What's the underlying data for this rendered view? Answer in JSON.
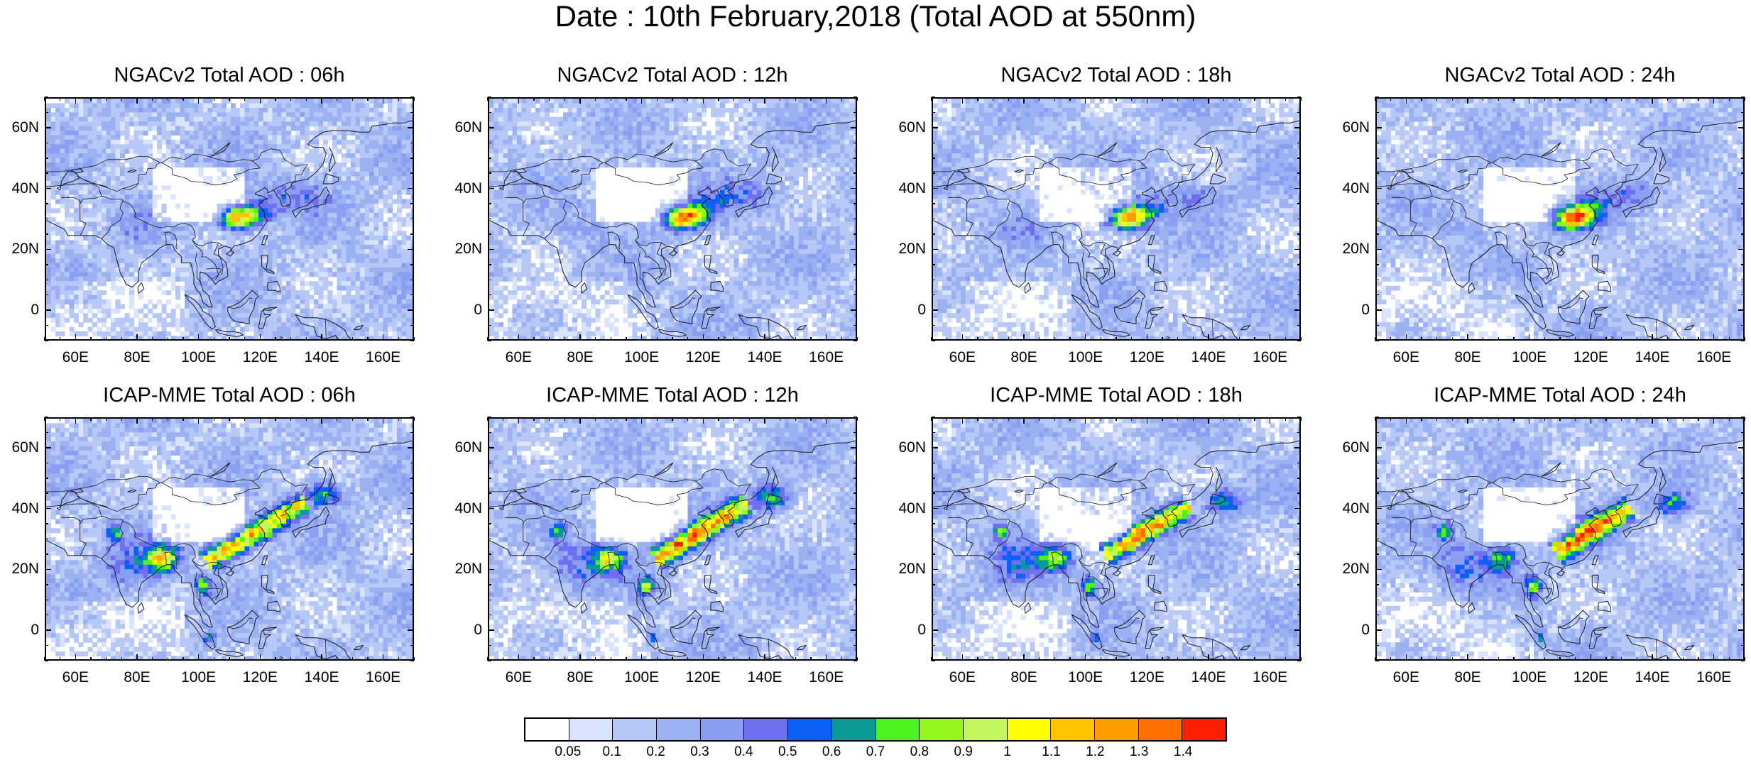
{
  "title": "Date : 10th February,2018 (Total AOD at 550nm)",
  "panels": [
    {
      "title": "NGACv2 Total AOD : 06h",
      "model": "ngac",
      "hour": 6
    },
    {
      "title": "NGACv2 Total AOD : 12h",
      "model": "ngac",
      "hour": 12
    },
    {
      "title": "NGACv2 Total AOD : 18h",
      "model": "ngac",
      "hour": 18
    },
    {
      "title": "NGACv2 Total AOD : 24h",
      "model": "ngac",
      "hour": 24
    },
    {
      "title": "ICAP-MME Total AOD : 06h",
      "model": "icap",
      "hour": 6
    },
    {
      "title": "ICAP-MME Total AOD : 12h",
      "model": "icap",
      "hour": 12
    },
    {
      "title": "ICAP-MME Total AOD : 18h",
      "model": "icap",
      "hour": 18
    },
    {
      "title": "ICAP-MME Total AOD : 24h",
      "model": "icap",
      "hour": 24
    }
  ],
  "map": {
    "lon_range": [
      50,
      170
    ],
    "lat_range": [
      -10,
      70
    ],
    "lon_ticks": [
      "60E",
      "80E",
      "100E",
      "120E",
      "140E",
      "160E"
    ],
    "lon_tick_values": [
      60,
      80,
      100,
      120,
      140,
      160
    ],
    "lat_ticks": [
      "60N",
      "40N",
      "20N",
      "0"
    ],
    "lat_tick_values": [
      60,
      40,
      20,
      0
    ]
  },
  "colorbar": {
    "labels": [
      "0.05",
      "0.1",
      "0.2",
      "0.3",
      "0.4",
      "0.5",
      "0.6",
      "0.7",
      "0.8",
      "0.9",
      "1",
      "1.1",
      "1.2",
      "1.3",
      "1.4"
    ],
    "colors": [
      "#ffffff",
      "#d9e3fb",
      "#b7c7f6",
      "#9bb1f2",
      "#8a9ef2",
      "#6f6ff0",
      "#0d5ff5",
      "#0a9a96",
      "#4ef21e",
      "#96f51a",
      "#c4f55a",
      "#ffff00",
      "#ffc400",
      "#ff9c00",
      "#ff7000",
      "#ff2000"
    ]
  }
}
